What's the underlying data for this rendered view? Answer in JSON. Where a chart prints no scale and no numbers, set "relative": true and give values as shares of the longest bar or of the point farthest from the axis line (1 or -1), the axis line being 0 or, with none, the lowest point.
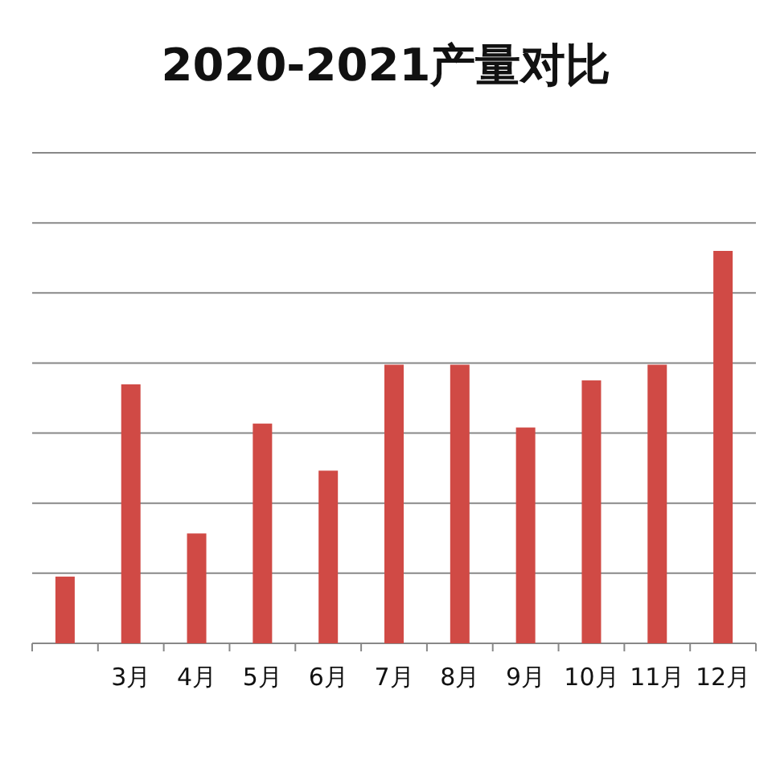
{
  "chart_data": {
    "type": "bar",
    "title": "2020-2021产量对比",
    "relative": true,
    "grid": "y",
    "color": "#d04a45",
    "categories": [
      null,
      "3月",
      "4月",
      "5月",
      "6月",
      "7月",
      "8月",
      "9月",
      "10月",
      "11月",
      "12月"
    ],
    "values": [
      0.17,
      0.66,
      0.28,
      0.56,
      0.44,
      0.71,
      0.71,
      0.55,
      0.67,
      0.71,
      1
    ]
  }
}
